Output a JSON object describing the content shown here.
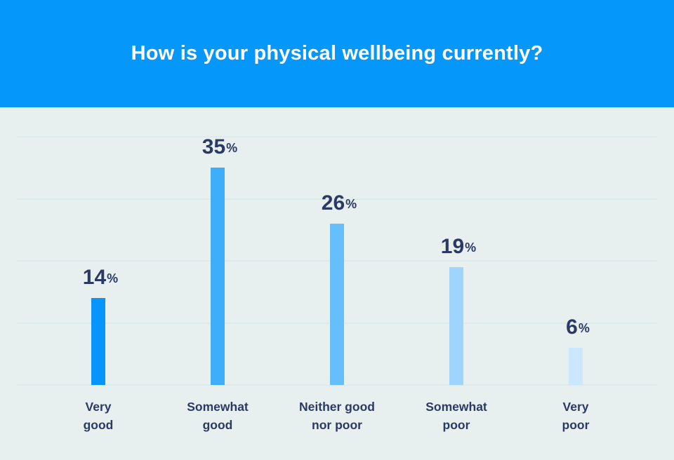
{
  "header": {
    "title": "How is your physical wellbeing currently?",
    "background_color": "#0598FA",
    "title_color": "#FFFFFF"
  },
  "chart": {
    "background_color": "#E8F0EF",
    "gridline_color": "#DCEBE9",
    "text_color": "#2B3964"
  },
  "chart_data": {
    "type": "bar",
    "title": "How is your physical wellbeing currently?",
    "categories": [
      "Very good",
      "Somewhat good",
      "Neither good nor poor",
      "Somewhat poor",
      "Very poor"
    ],
    "category_label_lines": [
      [
        "Very",
        "good"
      ],
      [
        "Somewhat",
        "good"
      ],
      [
        "Neither good",
        "nor poor"
      ],
      [
        "Somewhat",
        "poor"
      ],
      [
        "Very",
        "poor"
      ]
    ],
    "values": [
      14,
      35,
      26,
      19,
      6
    ],
    "unit": "%",
    "bar_colors": [
      "#0795FB",
      "#3FAEFA",
      "#66BFFB",
      "#9FD4FC",
      "#CCE8FE"
    ],
    "xlabel": "",
    "ylabel": "",
    "ylim": [
      0,
      40
    ],
    "gridline_interval": 10,
    "gridlines_shown": true,
    "legend": false
  }
}
